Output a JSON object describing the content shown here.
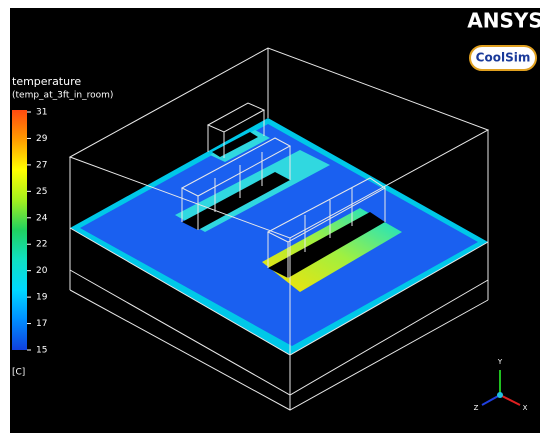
{
  "logo": {
    "brand": "ANSYS",
    "product": "CoolSim"
  },
  "legend": {
    "title": "temperature",
    "subtitle": "(temp_at_3ft_in_room)",
    "ticks": [
      31,
      29,
      27,
      25,
      24,
      22,
      20,
      19,
      17,
      15
    ],
    "unit": "[C]"
  },
  "axes": {
    "y": "Y",
    "z": "Z",
    "x": "X"
  }
}
